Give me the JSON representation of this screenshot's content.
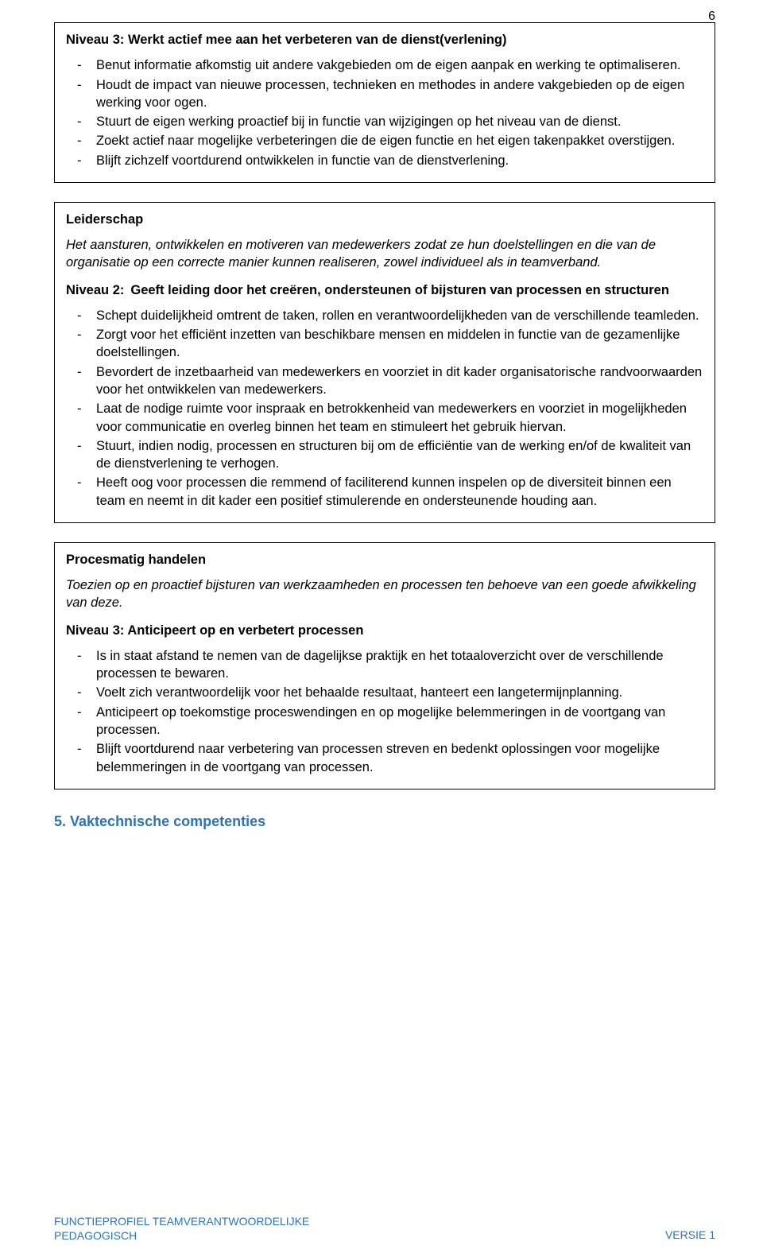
{
  "page_number": "6",
  "colors": {
    "accent": "#2e74b5",
    "border": "#000000",
    "text": "#000000",
    "bg": "#ffffff"
  },
  "box1": {
    "title": "Niveau 3: Werkt actief mee aan het verbeteren van de dienst(verlening)",
    "items": [
      "Benut informatie afkomstig uit andere vakgebieden om de eigen aanpak en werking te optimaliseren.",
      "Houdt de impact van nieuwe processen, technieken en methodes in andere vakgebieden op de eigen werking voor ogen.",
      "Stuurt de eigen werking proactief bij in functie van wijzigingen op het niveau van de dienst.",
      "Zoekt actief naar mogelijke verbeteringen die de eigen functie en het eigen takenpakket overstijgen.",
      "Blijft zichzelf voortdurend ontwikkelen in functie van de dienstverlening."
    ]
  },
  "box2": {
    "heading": "Leiderschap",
    "intro": "Het aansturen, ontwikkelen en motiveren van medewerkers zodat ze hun doelstellingen en die van de organisatie op een correcte manier kunnen realiseren, zowel individueel als in teamverband.",
    "niveau_label": "Niveau 2:",
    "niveau_text": "Geeft leiding door het creëren, ondersteunen of bijsturen van processen en structuren",
    "items": [
      "Schept duidelijkheid omtrent de taken, rollen en verantwoordelijkheden van de verschillende teamleden.",
      "Zorgt voor het efficiënt inzetten van beschikbare mensen en middelen in functie van de gezamenlijke doelstellingen.",
      "Bevordert de inzetbaarheid van medewerkers en voorziet in dit kader organisatorische randvoorwaarden voor het ontwikkelen van medewerkers.",
      "Laat de nodige ruimte voor inspraak en betrokkenheid van medewerkers en voorziet in mogelijkheden voor communicatie en overleg binnen het team en stimuleert het gebruik hiervan.",
      "Stuurt, indien nodig, processen en structuren bij om de efficiëntie van de werking en/of de kwaliteit van de dienstverlening te verhogen.",
      "Heeft oog voor processen die remmend of faciliterend kunnen inspelen op de diversiteit binnen een team en neemt in dit kader een positief stimulerende en ondersteunende houding aan."
    ]
  },
  "box3": {
    "heading": "Procesmatig handelen",
    "intro": "Toezien op en proactief bijsturen van werkzaamheden en processen ten behoeve van een goede afwikkeling van deze.",
    "niveau_title": "Niveau 3: Anticipeert op en verbetert processen",
    "items": [
      "Is in staat afstand te nemen van de dagelijkse praktijk en het totaaloverzicht over de verschillende processen te bewaren.",
      "Voelt zich verantwoordelijk voor het behaalde resultaat, hanteert een langetermijnplanning.",
      "Anticipeert op toekomstige proceswendingen en op mogelijke belemmeringen in de voortgang van processen.",
      "Blijft voortdurend naar verbetering van processen streven en bedenkt oplossingen voor mogelijke belemmeringen in de voortgang van processen."
    ]
  },
  "section5_heading": "5.  Vaktechnische competenties",
  "footer": {
    "left_line1": "FUNCTIEPROFIEL TEAMVERANTWOORDELIJKE",
    "left_line2": "PEDAGOGISCH",
    "right": "VERSIE 1"
  }
}
